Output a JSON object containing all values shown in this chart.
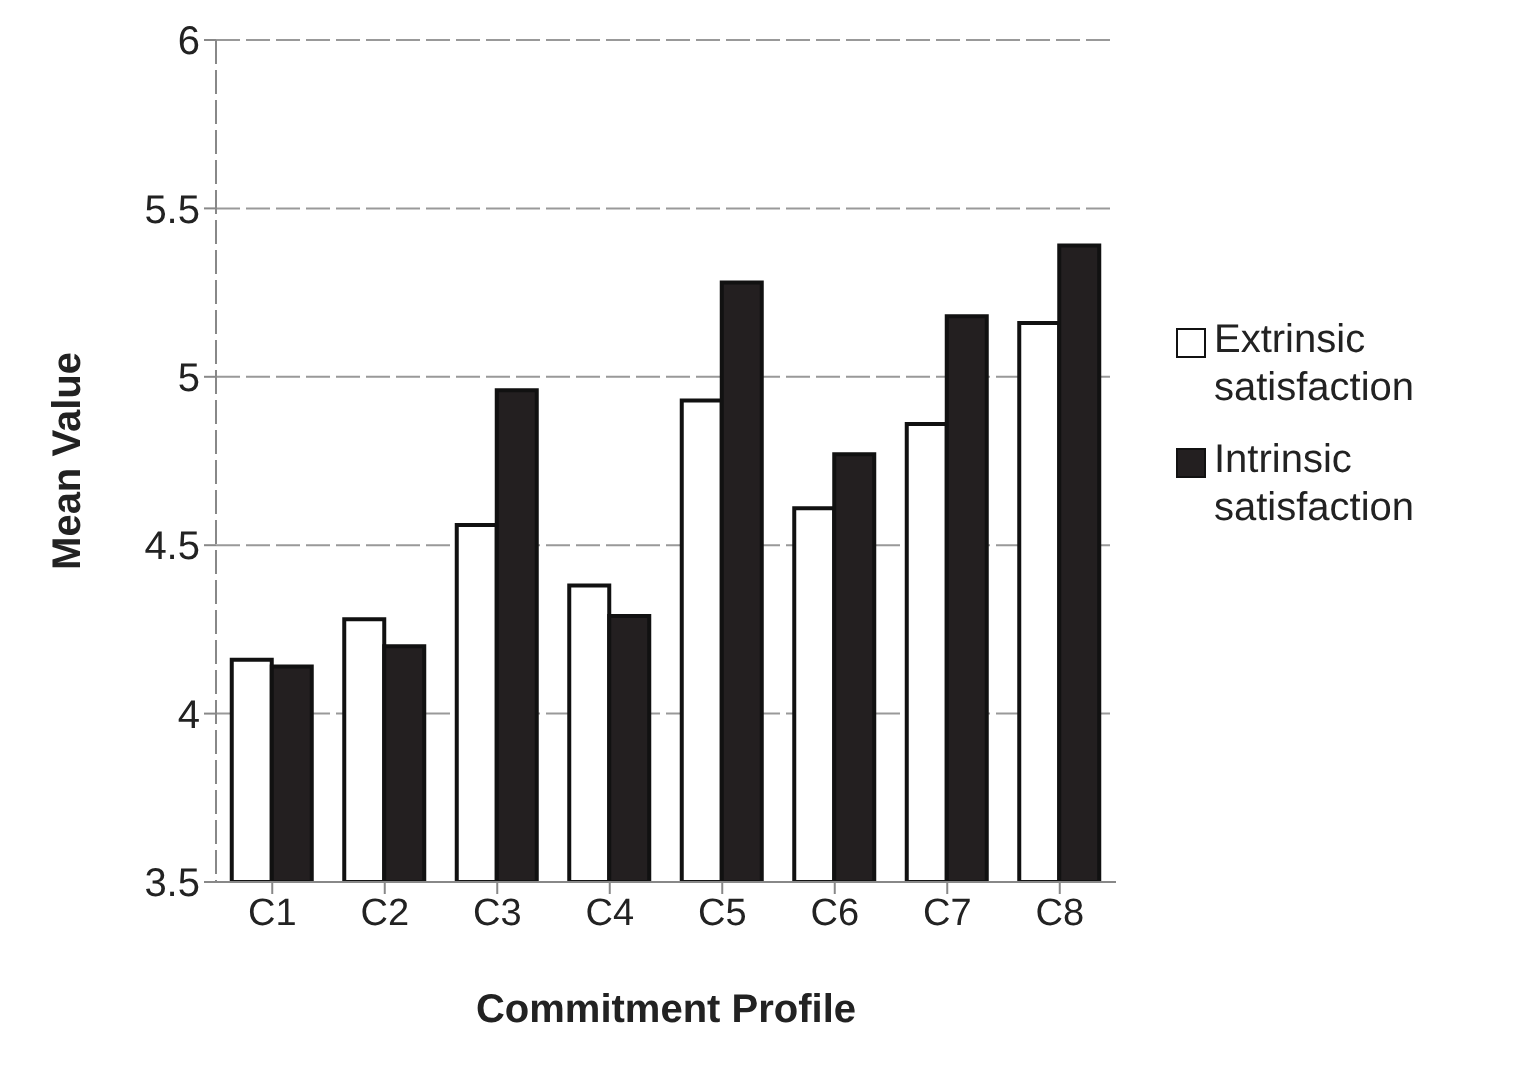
{
  "chart_data": {
    "type": "bar",
    "xlabel": "Commitment Profile",
    "ylabel": "Mean Value",
    "categories": [
      "C1",
      "C2",
      "C3",
      "C4",
      "C5",
      "C6",
      "C7",
      "C8"
    ],
    "series": [
      {
        "name": "Extrinsic satisfaction",
        "color": "#ffffff",
        "values": [
          4.16,
          4.28,
          4.56,
          4.38,
          4.93,
          4.61,
          4.86,
          5.16
        ]
      },
      {
        "name": "Intrinsic satisfaction",
        "color": "#231f20",
        "values": [
          4.14,
          4.2,
          4.96,
          4.29,
          5.28,
          4.77,
          5.18,
          5.39
        ]
      }
    ],
    "ylim": [
      3.5,
      6
    ],
    "yticks": [
      3.5,
      4,
      4.5,
      5,
      5.5,
      6
    ],
    "grid": "y",
    "legend": "right"
  }
}
